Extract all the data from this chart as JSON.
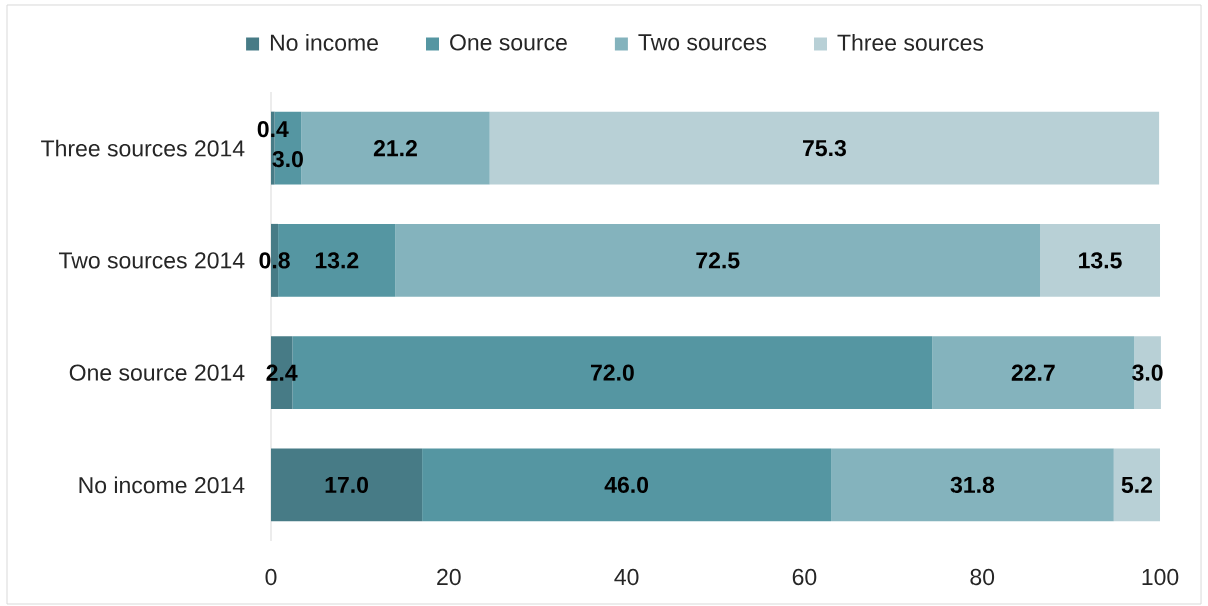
{
  "chart_data": {
    "type": "bar",
    "orientation": "horizontal",
    "stacked": true,
    "categories": [
      "Three sources 2014",
      "Two sources 2014",
      "One source 2014",
      "No income 2014"
    ],
    "series": [
      {
        "name": "No income",
        "color": "#477b86",
        "values": [
          0.4,
          0.8,
          2.4,
          17.0
        ],
        "value_labels": [
          "0.4",
          "0.8",
          "2.4",
          "17.0"
        ]
      },
      {
        "name": "One source",
        "color": "#5596a2",
        "values": [
          3.0,
          13.2,
          72.0,
          46.0
        ],
        "value_labels": [
          "3.0",
          "13.2",
          "72.0",
          "46.0"
        ]
      },
      {
        "name": "Two sources",
        "color": "#84b3bd",
        "values": [
          21.2,
          72.5,
          22.7,
          31.8
        ],
        "value_labels": [
          "21.2",
          "72.5",
          "22.7",
          "31.8"
        ]
      },
      {
        "name": "Three sources",
        "color": "#b8d0d6",
        "values": [
          75.3,
          13.5,
          3.0,
          5.2
        ],
        "value_labels": [
          "75.3",
          "13.5",
          "3.0",
          "5.2"
        ]
      }
    ],
    "xlim": [
      0,
      100
    ],
    "xticks": [
      0,
      20,
      40,
      60,
      80,
      100
    ],
    "legend": "top"
  }
}
